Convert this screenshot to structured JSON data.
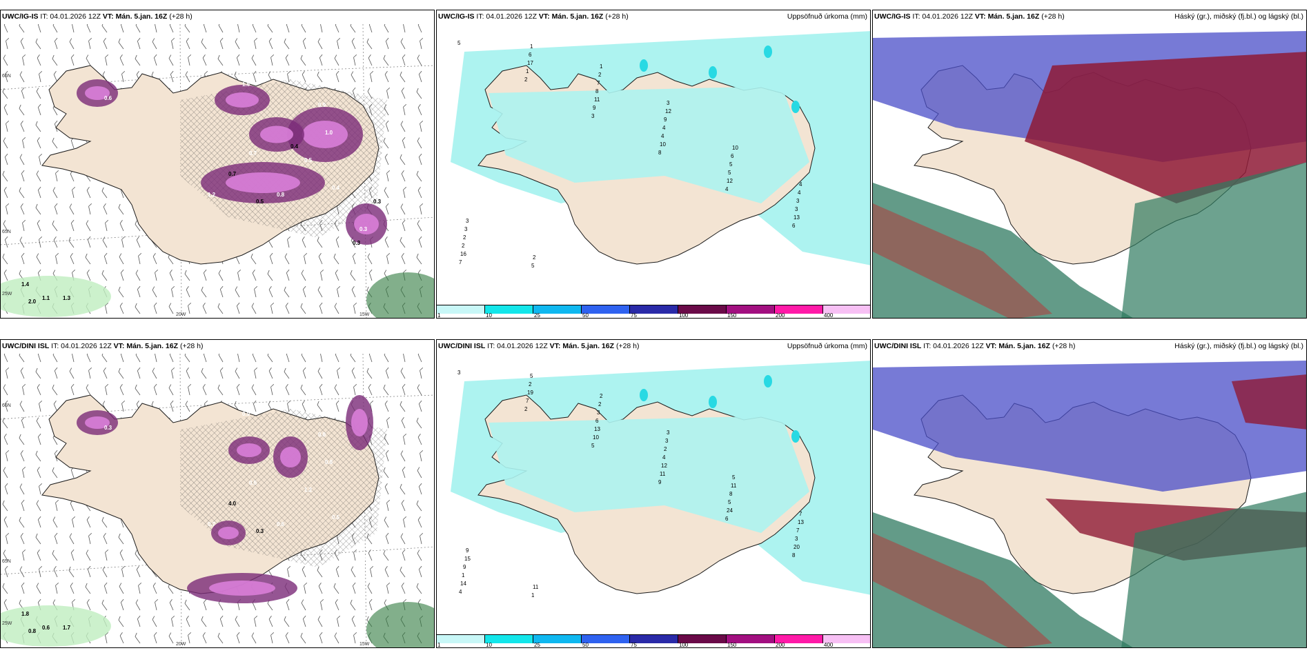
{
  "colors": {
    "land": "#f3e4d3",
    "coast": "#1a1a1a",
    "precip_light": "#adf3f0",
    "precip_mid": "#28d9e3",
    "precip_violet": "#d97ed8",
    "precip_violet_dark": "#7a2a78",
    "green_light": "#bfeebf",
    "green_dark": "#2e7a3e",
    "cloud_high": "#8e1a36",
    "cloud_mid": "#4a4ec8",
    "cloud_low": "#2f7a60"
  },
  "panels": [
    {
      "id": "igis-snow",
      "model": "UWC/IG-IS",
      "it": "IT: 04.01.2026 12Z",
      "vt": "VT: Mán. 5.jan. 16Z",
      "lead": "(+28 h)",
      "right": "",
      "lat_labels": [
        "66N",
        "65N"
      ],
      "lon_labels": [
        "25W",
        "20W",
        "15W"
      ],
      "values": [
        "1.6",
        "0.9",
        "0.7",
        "0.5",
        "1.2",
        "0.8",
        "0.4",
        "0.3",
        "0.6",
        "1.0",
        "1.4",
        "1.1",
        "1.3",
        "2.0",
        "0.7",
        "0.5",
        "0.4",
        "0.3",
        "0.3"
      ]
    },
    {
      "id": "igis-precip",
      "model": "UWC/IG-IS",
      "it": "IT: 04.01.2026 12Z",
      "vt": "VT: Mán. 5.jan. 16Z",
      "lead": "(+28 h)",
      "right": "Uppsöfnuð úrkoma (mm)",
      "values": [
        "5",
        "2",
        "3",
        "8",
        "4",
        "6",
        "7",
        "1",
        "9",
        "10",
        "12",
        "13",
        "16",
        "17",
        "11",
        "4",
        "5",
        "3",
        "2",
        "6",
        "8",
        "4",
        "5",
        "3",
        "2",
        "1",
        "7",
        "9",
        "6",
        "4",
        "3",
        "5",
        "2",
        "12",
        "10",
        "4",
        "3",
        "2",
        "1",
        "3"
      ]
    },
    {
      "id": "igis-cloud",
      "model": "UWC/IG-IS",
      "it": "IT: 04.01.2026 12Z",
      "vt": "VT: Mán. 5.jan. 16Z",
      "lead": "(+28 h)",
      "right": "Háský (gr.), miðský (fj.bl.) og lágský (bl.)"
    },
    {
      "id": "dini-snow",
      "model": "UWC/DINI ISL",
      "it": "IT: 04.01.2026 12Z",
      "vt": "VT: Mán. 5.jan. 16Z",
      "lead": "(+28 h)",
      "right": "",
      "lat_labels": [
        "66N",
        "65N"
      ],
      "lon_labels": [
        "25W",
        "20W",
        "15W"
      ],
      "values": [
        "0.9",
        "0.8",
        "0.5",
        "1.2",
        "0.7",
        "0.6",
        "0.5",
        "0.4",
        "0.3",
        "0.8",
        "1.8",
        "0.6",
        "1.7",
        "0.8",
        "4.0",
        "0.3"
      ]
    },
    {
      "id": "dini-precip",
      "model": "UWC/DINI ISL",
      "it": "IT: 04.01.2026 12Z",
      "vt": "VT: Mán. 5.jan. 16Z",
      "lead": "(+28 h)",
      "right": "Uppsöfnuð úrkoma (mm)",
      "values": [
        "3",
        "2",
        "5",
        "9",
        "6",
        "8",
        "4",
        "7",
        "10",
        "11",
        "24",
        "20",
        "14",
        "19",
        "13",
        "12",
        "5",
        "3",
        "1",
        "2",
        "6",
        "4",
        "8",
        "7",
        "9",
        "5",
        "3",
        "2",
        "11",
        "13",
        "15",
        "1",
        "2",
        "3",
        "5",
        "7",
        "9",
        "11",
        "2",
        "3"
      ]
    },
    {
      "id": "dini-cloud",
      "model": "UWC/DINI ISL",
      "it": "IT: 04.01.2026 12Z",
      "vt": "VT: Mán. 5.jan. 16Z",
      "lead": "(+28 h)",
      "right": "Háský (gr.), miðský (fj.bl.) og lágský (bl.)"
    }
  ],
  "colorbar": {
    "labels": [
      "1",
      "10",
      "25",
      "50",
      "75",
      "100",
      "150",
      "200",
      "400"
    ],
    "colors": [
      "#c8f7f7",
      "#13e6ea",
      "#0fb8f0",
      "#2f62f0",
      "#2a2aa8",
      "#6a0a48",
      "#a20f80",
      "#ff1aa8",
      "#f7c0f4"
    ]
  }
}
